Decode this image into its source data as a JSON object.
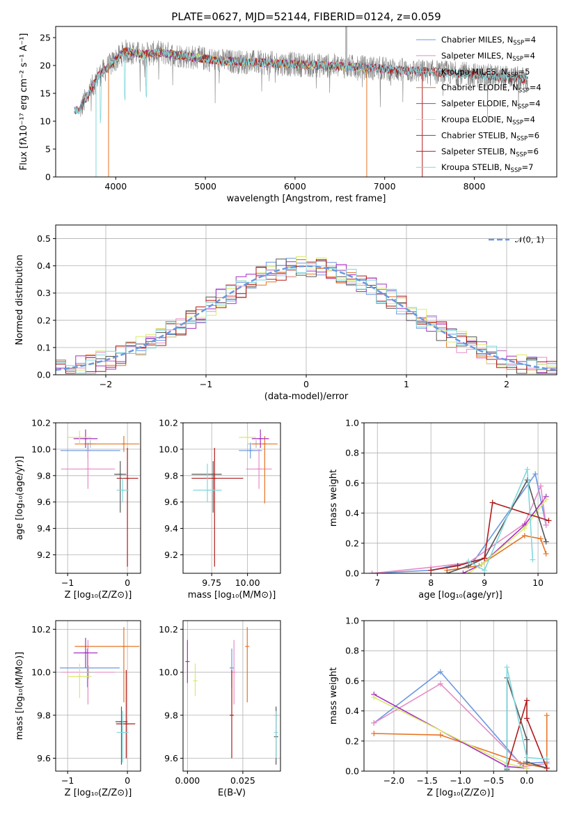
{
  "colors": {
    "chabrier_miles": "#6a98e0",
    "salpeter_miles": "#e68bc6",
    "kroupa_miles": "#b8b8b8",
    "chabrier_elodie": "#e67322",
    "salpeter_elodie": "#a52fc0",
    "kroupa_elodie": "#d8ea6c",
    "chabrier_stelib": "#555555",
    "salpeter_stelib": "#b01a1a",
    "kroupa_stelib": "#7fd8dc",
    "data_gray": "#808080"
  },
  "chart_data": [
    {
      "id": "spectrum",
      "type": "line",
      "title": "PLATE=0627, MJD=52144, FIBERID=0124, z=0.059",
      "xlabel": "wavelength [Angstrom, rest frame]",
      "ylabel": "Flux [fλ10⁻¹⁷ erg cm⁻² s⁻¹ A⁻¹]",
      "xlim": [
        3330,
        8920
      ],
      "ylim": [
        0,
        27
      ],
      "xticks": [
        4000,
        5000,
        6000,
        7000,
        8000
      ],
      "yticks": [
        0,
        5,
        10,
        15,
        20,
        25
      ],
      "grid": false,
      "legend_placement": "upper right",
      "legend": [
        {
          "label": "Chabrier MILES, N",
          "sub": "SSP",
          "suffix": "=4",
          "color_key": "chabrier_miles"
        },
        {
          "label": "Salpeter MILES, N",
          "sub": "SSP",
          "suffix": "=4",
          "color_key": "salpeter_miles"
        },
        {
          "label": "Kroupa MILES, N",
          "sub": "SSP",
          "suffix": "=5",
          "color_key": "kroupa_miles"
        },
        {
          "label": "Chabrier ELODIE, N",
          "sub": "SSP",
          "suffix": "=4",
          "color_key": "chabrier_elodie"
        },
        {
          "label": "Salpeter ELODIE, N",
          "sub": "SSP",
          "suffix": "=4",
          "color_key": "salpeter_elodie"
        },
        {
          "label": "Kroupa ELODIE, N",
          "sub": "SSP",
          "suffix": "=4",
          "color_key": "kroupa_elodie"
        },
        {
          "label": "Chabrier STELIB, N",
          "sub": "SSP",
          "suffix": "=6",
          "color_key": "chabrier_stelib"
        },
        {
          "label": "Salpeter STELIB, N",
          "sub": "SSP",
          "suffix": "=6",
          "color_key": "salpeter_stelib"
        },
        {
          "label": "Kroupa STELIB, N",
          "sub": "SSP",
          "suffix": "=7",
          "color_key": "kroupa_stelib"
        }
      ],
      "continuum": [
        [
          3600,
          12
        ],
        [
          3700,
          15
        ],
        [
          3800,
          18
        ],
        [
          3900,
          19.5
        ],
        [
          4000,
          21
        ],
        [
          4100,
          22.5
        ],
        [
          4300,
          22
        ],
        [
          4500,
          22.3
        ],
        [
          4800,
          21.6
        ],
        [
          5000,
          21.2
        ],
        [
          5200,
          20.8
        ],
        [
          5500,
          20.6
        ],
        [
          6000,
          20.2
        ],
        [
          6300,
          20
        ],
        [
          6600,
          19.8
        ],
        [
          6800,
          19.6
        ],
        [
          7000,
          19.4
        ],
        [
          7300,
          19
        ],
        [
          7600,
          18.8
        ],
        [
          8000,
          18.3
        ],
        [
          8300,
          17.9
        ],
        [
          8600,
          17.5
        ]
      ]
    },
    {
      "id": "residual-hist",
      "type": "line",
      "xlabel": "(data-model)/error",
      "ylabel": "Normed distribution",
      "xlim": [
        -2.5,
        2.5
      ],
      "ylim": [
        0,
        0.55
      ],
      "xticks": [
        -2,
        -1,
        0,
        1,
        2
      ],
      "yticks": [
        0.0,
        0.1,
        0.2,
        0.3,
        0.4,
        0.5
      ],
      "grid": true,
      "legend": [
        {
          "label": "𝒩(0, 1)",
          "color_key": "chabrier_miles"
        }
      ],
      "legend_placement": "upper right"
    },
    {
      "id": "age-vs-z",
      "type": "scatter",
      "xlabel": "Z [log₁₀(Z/Z⊙)]",
      "ylabel": "age  [log₁₀(age/yr)]",
      "xlim": [
        -1.2,
        0.22
      ],
      "ylim": [
        9.06,
        10.2
      ],
      "xticks": [
        -1,
        0
      ],
      "yticks": [
        9.2,
        9.4,
        9.6,
        9.8,
        10.0,
        10.2
      ],
      "grid": true,
      "points": [
        {
          "series": "chabrier_miles",
          "x": -0.66,
          "y": 9.99,
          "xerr": [
            0.46,
            0.54
          ],
          "yerr": [
            0.06,
            0.06
          ]
        },
        {
          "series": "salpeter_miles",
          "x": -0.66,
          "y": 9.85,
          "xerr": [
            0.45,
            0.45
          ],
          "yerr": [
            0.15,
            0.15
          ]
        },
        {
          "series": "kroupa_miles",
          "x": -0.62,
          "y": 10.04,
          "xerr": [
            0.1,
            0.1
          ],
          "yerr": [
            0.03,
            0.03
          ]
        },
        {
          "series": "chabrier_elodie",
          "x": -0.06,
          "y": 10.04,
          "xerr": [
            0.82,
            0.26
          ],
          "yerr": [
            0.06,
            0.06
          ]
        },
        {
          "series": "salpeter_elodie",
          "x": -0.7,
          "y": 10.08,
          "xerr": [
            0.2,
            0.2
          ],
          "yerr": [
            0.07,
            0.07
          ]
        },
        {
          "series": "kroupa_elodie",
          "x": -0.8,
          "y": 10.09,
          "xerr": [
            0.2,
            0.2
          ],
          "yerr": [
            0.05,
            0.05
          ]
        },
        {
          "series": "chabrier_stelib",
          "x": -0.12,
          "y": 9.81,
          "xerr": [
            0.1,
            0.1
          ],
          "yerr": [
            0.29,
            0.1
          ]
        },
        {
          "series": "salpeter_stelib",
          "x": 0.0,
          "y": 9.78,
          "xerr": [
            0.18,
            0.18
          ],
          "yerr": [
            0.67,
            0.23
          ]
        },
        {
          "series": "kroupa_stelib",
          "x": -0.08,
          "y": 9.69,
          "xerr": [
            0.1,
            0.1
          ],
          "yerr": [
            0.09,
            0.09
          ]
        }
      ]
    },
    {
      "id": "age-vs-mass",
      "type": "scatter",
      "xlabel": "mass [log₁₀(M/M⊙)]",
      "ylabel": "",
      "xlim": [
        9.55,
        10.23
      ],
      "ylim": [
        9.06,
        10.2
      ],
      "xticks": [
        9.75,
        10.0
      ],
      "yticks": [
        9.2,
        9.4,
        9.6,
        9.8,
        10.0,
        10.2
      ],
      "grid": true,
      "points": [
        {
          "series": "chabrier_miles",
          "x": 10.02,
          "y": 9.99,
          "xerr": [
            0.08,
            0.08
          ],
          "yerr": [
            0.06,
            0.06
          ]
        },
        {
          "series": "salpeter_miles",
          "x": 10.08,
          "y": 9.85,
          "xerr": [
            0.09,
            0.09
          ],
          "yerr": [
            0.15,
            0.15
          ]
        },
        {
          "series": "kroupa_miles",
          "x": 10.06,
          "y": 10.04,
          "xerr": [
            0.06,
            0.06
          ],
          "yerr": [
            0.03,
            0.03
          ]
        },
        {
          "series": "chabrier_elodie",
          "x": 10.12,
          "y": 10.04,
          "xerr": [
            0.09,
            0.09
          ],
          "yerr": [
            0.45,
            0.06
          ]
        },
        {
          "series": "salpeter_elodie",
          "x": 10.09,
          "y": 10.08,
          "xerr": [
            0.06,
            0.06
          ],
          "yerr": [
            0.07,
            0.07
          ]
        },
        {
          "series": "kroupa_elodie",
          "x": 10.0,
          "y": 10.09,
          "xerr": [
            0.06,
            0.06
          ],
          "yerr": [
            0.05,
            0.05
          ]
        },
        {
          "series": "chabrier_stelib",
          "x": 9.76,
          "y": 9.81,
          "xerr": [
            0.15,
            0.06
          ],
          "yerr": [
            0.29,
            0.1
          ]
        },
        {
          "series": "salpeter_stelib",
          "x": 9.77,
          "y": 9.78,
          "xerr": [
            0.16,
            0.2
          ],
          "yerr": [
            0.67,
            0.23
          ]
        },
        {
          "series": "kroupa_stelib",
          "x": 9.72,
          "y": 9.69,
          "xerr": [
            0.1,
            0.1
          ],
          "yerr": [
            0.09,
            0.2
          ]
        }
      ]
    },
    {
      "id": "massweight-vs-age",
      "type": "line",
      "xlabel": "age  [log₁₀(age/yr)]",
      "ylabel": "mass weight",
      "xlim": [
        6.75,
        10.35
      ],
      "ylim": [
        0,
        1.0
      ],
      "xticks": [
        7,
        8,
        9,
        10
      ],
      "yticks": [
        0.0,
        0.2,
        0.4,
        0.6,
        0.8,
        1.0
      ],
      "grid": true,
      "series": [
        {
          "key": "chabrier_miles",
          "x": [
            6.9,
            8.0,
            8.8,
            9.95,
            10.15
          ],
          "y": [
            0.0,
            0.02,
            0.08,
            0.66,
            0.32
          ]
        },
        {
          "key": "salpeter_miles",
          "x": [
            6.9,
            8.0,
            8.7,
            9.75,
            10.05,
            10.15
          ],
          "y": [
            0.0,
            0.04,
            0.07,
            0.33,
            0.58,
            0.32
          ]
        },
        {
          "key": "chabrier_elodie",
          "x": [
            8.3,
            8.9,
            9.75,
            10.05,
            10.15
          ],
          "y": [
            0.02,
            0.05,
            0.25,
            0.23,
            0.13
          ]
        },
        {
          "key": "salpeter_elodie",
          "x": [
            8.6,
            8.95,
            9.75,
            10.15
          ],
          "y": [
            0.0,
            0.06,
            0.32,
            0.51
          ]
        },
        {
          "key": "kroupa_elodie",
          "x": [
            8.7,
            8.95,
            9.75,
            10.15
          ],
          "y": [
            0.0,
            0.06,
            0.3,
            0.49
          ]
        },
        {
          "key": "chabrier_stelib",
          "x": [
            8.3,
            8.7,
            9.0,
            9.8,
            10.15
          ],
          "y": [
            0.0,
            0.05,
            0.1,
            0.62,
            0.21
          ]
        },
        {
          "key": "salpeter_stelib",
          "x": [
            8.0,
            8.5,
            9.0,
            9.15,
            10.2
          ],
          "y": [
            0.02,
            0.05,
            0.1,
            0.47,
            0.35
          ]
        },
        {
          "key": "kroupa_stelib",
          "x": [
            8.7,
            9.0,
            9.8,
            9.9
          ],
          "y": [
            0.08,
            0.02,
            0.69,
            0.09
          ]
        }
      ]
    },
    {
      "id": "mass-vs-z",
      "type": "scatter",
      "xlabel": "Z [log₁₀(Z/Z⊙)]",
      "ylabel": "mass [log₁₀(M/M⊙)]",
      "xlim": [
        -1.2,
        0.22
      ],
      "ylim": [
        9.54,
        10.24
      ],
      "xticks": [
        -1,
        0
      ],
      "yticks": [
        9.6,
        9.8,
        10.0,
        10.2
      ],
      "grid": true,
      "points": [
        {
          "series": "chabrier_miles",
          "x": -0.67,
          "y": 10.02,
          "xerr": [
            0.46,
            0.54
          ],
          "yerr": [
            0.09,
            0.09
          ]
        },
        {
          "series": "salpeter_miles",
          "x": -0.66,
          "y": 10.0,
          "xerr": [
            0.45,
            0.45
          ],
          "yerr": [
            0.15,
            0.15
          ]
        },
        {
          "series": "kroupa_miles",
          "x": -0.65,
          "y": 10.0,
          "xerr": [
            0.1,
            0.1
          ],
          "yerr": [
            0.03,
            0.03
          ]
        },
        {
          "series": "chabrier_elodie",
          "x": -0.06,
          "y": 10.12,
          "xerr": [
            0.82,
            0.26
          ],
          "yerr": [
            0.26,
            0.09
          ]
        },
        {
          "series": "salpeter_elodie",
          "x": -0.7,
          "y": 10.09,
          "xerr": [
            0.2,
            0.2
          ],
          "yerr": [
            0.07,
            0.07
          ]
        },
        {
          "series": "kroupa_elodie",
          "x": -0.8,
          "y": 9.98,
          "xerr": [
            0.2,
            0.2
          ],
          "yerr": [
            0.1,
            0.06
          ]
        },
        {
          "series": "chabrier_stelib",
          "x": -0.1,
          "y": 9.77,
          "xerr": [
            0.1,
            0.1
          ],
          "yerr": [
            0.2,
            0.07
          ]
        },
        {
          "series": "salpeter_stelib",
          "x": -0.02,
          "y": 9.76,
          "xerr": [
            0.17,
            0.15
          ],
          "yerr": [
            0.16,
            0.25
          ]
        },
        {
          "series": "kroupa_stelib",
          "x": -0.08,
          "y": 9.72,
          "xerr": [
            0.1,
            0.1
          ],
          "yerr": [
            0.14,
            0.1
          ]
        }
      ]
    },
    {
      "id": "ebv-strip",
      "type": "scatter",
      "xlabel": "E(B-V)",
      "ylabel": "",
      "xlim": [
        -0.002,
        0.042
      ],
      "ylim": [
        9.54,
        10.24
      ],
      "xticks": [
        0.0,
        0.025
      ],
      "xticklabels": [
        "0.000",
        "0.025"
      ],
      "yticks": [
        9.6,
        9.8,
        10.0,
        10.2
      ],
      "grid": true,
      "points": [
        {
          "series": "chabrier_miles",
          "x": 0.02,
          "y": 10.02,
          "yerr": [
            0.09,
            0.09
          ]
        },
        {
          "series": "salpeter_miles",
          "x": 0.021,
          "y": 10.0,
          "yerr": [
            0.15,
            0.15
          ]
        },
        {
          "series": "kroupa_miles",
          "x": 0.04,
          "y": 9.8,
          "yerr": [
            0.03,
            0.03
          ]
        },
        {
          "series": "chabrier_elodie",
          "x": 0.027,
          "y": 10.12,
          "yerr": [
            0.26,
            0.09
          ]
        },
        {
          "series": "salpeter_elodie",
          "x": 0.0,
          "y": 10.05,
          "yerr": [
            0.1,
            0.1
          ]
        },
        {
          "series": "kroupa_elodie",
          "x": 0.0035,
          "y": 9.96,
          "yerr": [
            0.07,
            0.08
          ]
        },
        {
          "series": "chabrier_stelib",
          "x": 0.04,
          "y": 9.7,
          "yerr": [
            0.13,
            0.14
          ]
        },
        {
          "series": "salpeter_stelib",
          "x": 0.02,
          "y": 9.8,
          "yerr": [
            0.2,
            0.21
          ]
        },
        {
          "series": "kroupa_stelib",
          "x": 0.04,
          "y": 9.72,
          "yerr": [
            0.12,
            0.1
          ]
        }
      ]
    },
    {
      "id": "massweight-vs-z",
      "type": "line",
      "xlabel": "Z [log₁₀(Z/Z⊙)]",
      "ylabel": "mass weight",
      "xlim": [
        -2.45,
        0.45
      ],
      "ylim": [
        0,
        1.0
      ],
      "xticks": [
        -2.0,
        -1.5,
        -1.0,
        -0.5,
        0.0
      ],
      "xticklabels": [
        "−2.0",
        "−1.5",
        "−1.0",
        "−0.5",
        "0.0"
      ],
      "yticks": [
        0.0,
        0.2,
        0.4,
        0.6,
        0.8,
        1.0
      ],
      "grid": true,
      "series": [
        {
          "key": "chabrier_miles",
          "x": [
            -2.3,
            -1.3,
            -0.1,
            0.3
          ],
          "y": [
            0.32,
            0.66,
            0.05,
            0.06
          ]
        },
        {
          "key": "salpeter_miles",
          "x": [
            -2.3,
            -1.3,
            -0.05,
            0.3
          ],
          "y": [
            0.32,
            0.58,
            0.03,
            0.05
          ]
        },
        {
          "key": "chabrier_elodie",
          "x": [
            -2.3,
            -1.3,
            -0.05,
            0.3,
            0.3
          ],
          "y": [
            0.25,
            0.24,
            0.05,
            0.02,
            0.37
          ]
        },
        {
          "key": "salpeter_elodie",
          "x": [
            -2.3,
            -0.3,
            0.0
          ],
          "y": [
            0.51,
            0.03,
            0.02
          ]
        },
        {
          "key": "kroupa_elodie",
          "x": [
            -2.3,
            -0.3,
            0.0
          ],
          "y": [
            0.49,
            0.05,
            0.02
          ]
        },
        {
          "key": "chabrier_stelib",
          "x": [
            -0.3,
            -0.3,
            0.0,
            0.0,
            0.3
          ],
          "y": [
            0.01,
            0.62,
            0.21,
            0.06,
            0.02
          ]
        },
        {
          "key": "salpeter_stelib",
          "x": [
            -0.3,
            0.0,
            0.0,
            0.3
          ],
          "y": [
            0.02,
            0.47,
            0.35,
            0.02
          ]
        },
        {
          "key": "kroupa_stelib",
          "x": [
            -0.3,
            -0.3,
            0.0,
            0.3
          ],
          "y": [
            0.02,
            0.69,
            0.09,
            0.08
          ]
        }
      ]
    }
  ]
}
